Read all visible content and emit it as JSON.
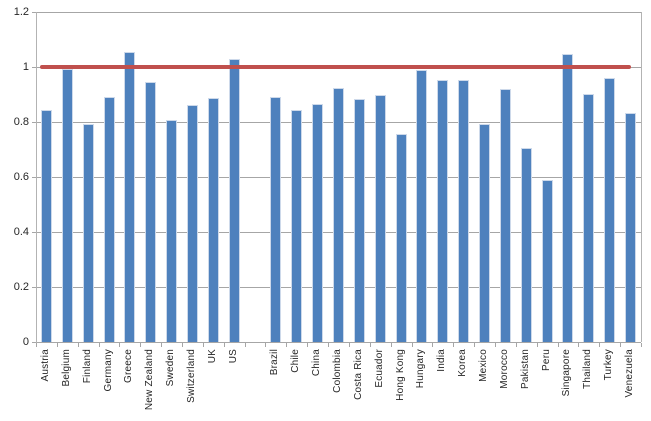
{
  "chart_data": {
    "type": "bar",
    "title": "",
    "categories": [
      "Austria",
      "Belgium",
      "Finland",
      "Germany",
      "Greece",
      "New Zealand",
      "Sweden",
      "Switzerland",
      "UK",
      "US",
      "",
      "Brazil",
      "Chile",
      "China",
      "Colombia",
      "Costa Rica",
      "Ecuador",
      "Hong Kong",
      "Hungary",
      "India",
      "Korea",
      "Mexico",
      "Morocco",
      "Pakistan",
      "Peru",
      "Singapore",
      "Thailand",
      "Turkey",
      "Venezuela"
    ],
    "values": [
      0.843,
      0.994,
      0.791,
      0.891,
      1.055,
      0.944,
      0.806,
      0.861,
      0.889,
      1.029,
      null,
      0.891,
      0.844,
      0.866,
      0.922,
      0.884,
      0.898,
      0.756,
      0.989,
      0.953,
      0.953,
      0.792,
      0.921,
      0.706,
      0.59,
      1.049,
      0.903,
      0.96,
      0.834
    ],
    "reference_line": {
      "value": 1.0
    },
    "xlabel": "",
    "ylabel": "",
    "ylim": [
      0,
      1.2
    ],
    "ytick_labels": [
      "0",
      "0.2",
      "0.4",
      "0.6",
      "0.8",
      "1",
      "1.2"
    ],
    "ytick_values": [
      0,
      0.2,
      0.4,
      0.6,
      0.8,
      1,
      1.2
    ],
    "grid": "horizontal-on",
    "legend": "none",
    "x_labels_rotated": "bottom-to-top",
    "colors": {
      "bar_fill": "#4E81BD",
      "bar_edge": "#CDD9EA",
      "reference_line": "#C0504D",
      "gridline": "#A6A6A6",
      "axis_text": "#262626",
      "background": "#FFFFFF"
    }
  }
}
